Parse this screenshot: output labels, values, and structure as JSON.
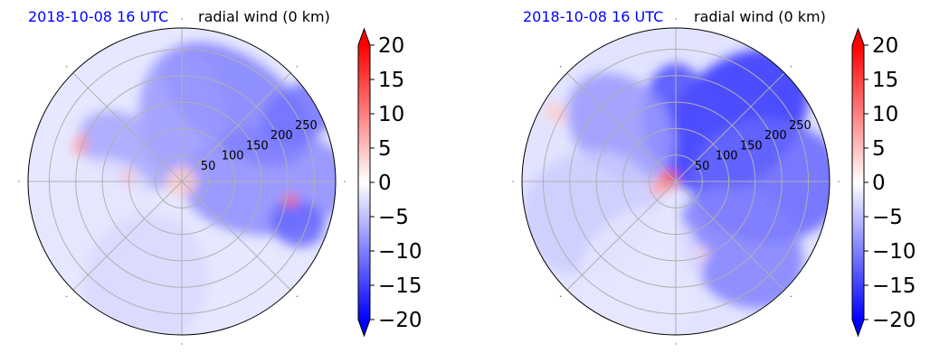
{
  "chart_data": [
    {
      "type": "heatmap",
      "projection": "polar",
      "title_left": "2018-10-08 16 UTC",
      "title_right": "radial wind (0 km)",
      "title_left_color": "#0000ff",
      "radial_ticks": [
        "50",
        "100",
        "150",
        "200",
        "250"
      ],
      "radial_tick_values": [
        50,
        100,
        150,
        200,
        250
      ],
      "r_max": 290,
      "grid": true,
      "colorbar": {
        "ticks": [
          "20",
          "15",
          "10",
          "5",
          "0",
          "−5",
          "−10",
          "−15",
          "−20"
        ],
        "tick_values": [
          20,
          15,
          10,
          5,
          0,
          -5,
          -10,
          -15,
          -20
        ],
        "vmin": -20,
        "vmax": 20,
        "extend": "both",
        "colormap": "bwr",
        "low_color": "#0000ff",
        "mid_color": "#ffffff",
        "high_color": "#ff0000"
      },
      "field_features": [
        {
          "az": 0,
          "r": 0.55,
          "sx": 0.55,
          "sy": 0.35,
          "v": -9
        },
        {
          "az": 55,
          "r": 0.62,
          "sx": 0.3,
          "sy": 0.55,
          "v": -10
        },
        {
          "az": 30,
          "r": 0.9,
          "sx": 0.28,
          "sy": 0.18,
          "v": -11
        },
        {
          "az": 90,
          "r": 0.45,
          "sx": 0.42,
          "sy": 0.28,
          "v": -8
        },
        {
          "az": 150,
          "r": 0.4,
          "sx": 0.35,
          "sy": 0.22,
          "v": -7
        },
        {
          "az": -20,
          "r": 0.8,
          "sx": 0.18,
          "sy": 0.15,
          "v": -12
        },
        {
          "az": 200,
          "r": 0.6,
          "sx": 0.4,
          "sy": 0.35,
          "v": -2
        },
        {
          "az": 250,
          "r": 0.7,
          "sx": 0.45,
          "sy": 0.4,
          "v": -3
        },
        {
          "az": 0,
          "r": 0.0,
          "sx": 0.1,
          "sy": 0.1,
          "v": 4
        },
        {
          "az": -10,
          "r": 0.72,
          "sx": 0.05,
          "sy": 0.04,
          "v": 12
        },
        {
          "az": 160,
          "r": 0.7,
          "sx": 0.04,
          "sy": 0.08,
          "v": 8
        },
        {
          "az": 175,
          "r": 0.35,
          "sx": 0.04,
          "sy": 0.04,
          "v": 6
        }
      ]
    },
    {
      "type": "heatmap",
      "projection": "polar",
      "title_left": "2018-10-08 16 UTC",
      "title_right": "radial wind (0 km)",
      "title_left_color": "#0000ff",
      "radial_ticks": [
        "50",
        "100",
        "150",
        "200",
        "250"
      ],
      "radial_tick_values": [
        50,
        100,
        150,
        200,
        250
      ],
      "r_max": 290,
      "grid": true,
      "colorbar": {
        "ticks": [
          "20",
          "15",
          "10",
          "5",
          "0",
          "−5",
          "−10",
          "−15",
          "−20"
        ],
        "tick_values": [
          20,
          15,
          10,
          5,
          0,
          -5,
          -10,
          -15,
          -20
        ],
        "vmin": -20,
        "vmax": 20,
        "extend": "both",
        "colormap": "bwr",
        "low_color": "#0000ff",
        "mid_color": "#ffffff",
        "high_color": "#ff0000"
      },
      "field_features": [
        {
          "az": 45,
          "r": 0.55,
          "sx": 0.55,
          "sy": 0.38,
          "v": -16
        },
        {
          "az": 0,
          "r": 0.6,
          "sx": 0.5,
          "sy": 0.4,
          "v": -12
        },
        {
          "az": 90,
          "r": 0.42,
          "sx": 0.35,
          "sy": 0.22,
          "v": -14
        },
        {
          "az": 135,
          "r": 0.5,
          "sx": 0.4,
          "sy": 0.3,
          "v": -8
        },
        {
          "az": -45,
          "r": 0.6,
          "sx": 0.45,
          "sy": 0.35,
          "v": -10
        },
        {
          "az": 200,
          "r": 0.6,
          "sx": 0.45,
          "sy": 0.4,
          "v": -4
        },
        {
          "az": 250,
          "r": 0.7,
          "sx": 0.5,
          "sy": 0.4,
          "v": -2
        },
        {
          "az": 160,
          "r": 0.05,
          "sx": 0.06,
          "sy": 0.06,
          "v": 14
        },
        {
          "az": 200,
          "r": 0.12,
          "sx": 0.05,
          "sy": 0.05,
          "v": 8
        },
        {
          "az": 150,
          "r": 0.9,
          "sx": 0.08,
          "sy": 0.06,
          "v": 4
        },
        {
          "az": -70,
          "r": 0.5,
          "sx": 0.05,
          "sy": 0.04,
          "v": 3
        }
      ]
    }
  ]
}
